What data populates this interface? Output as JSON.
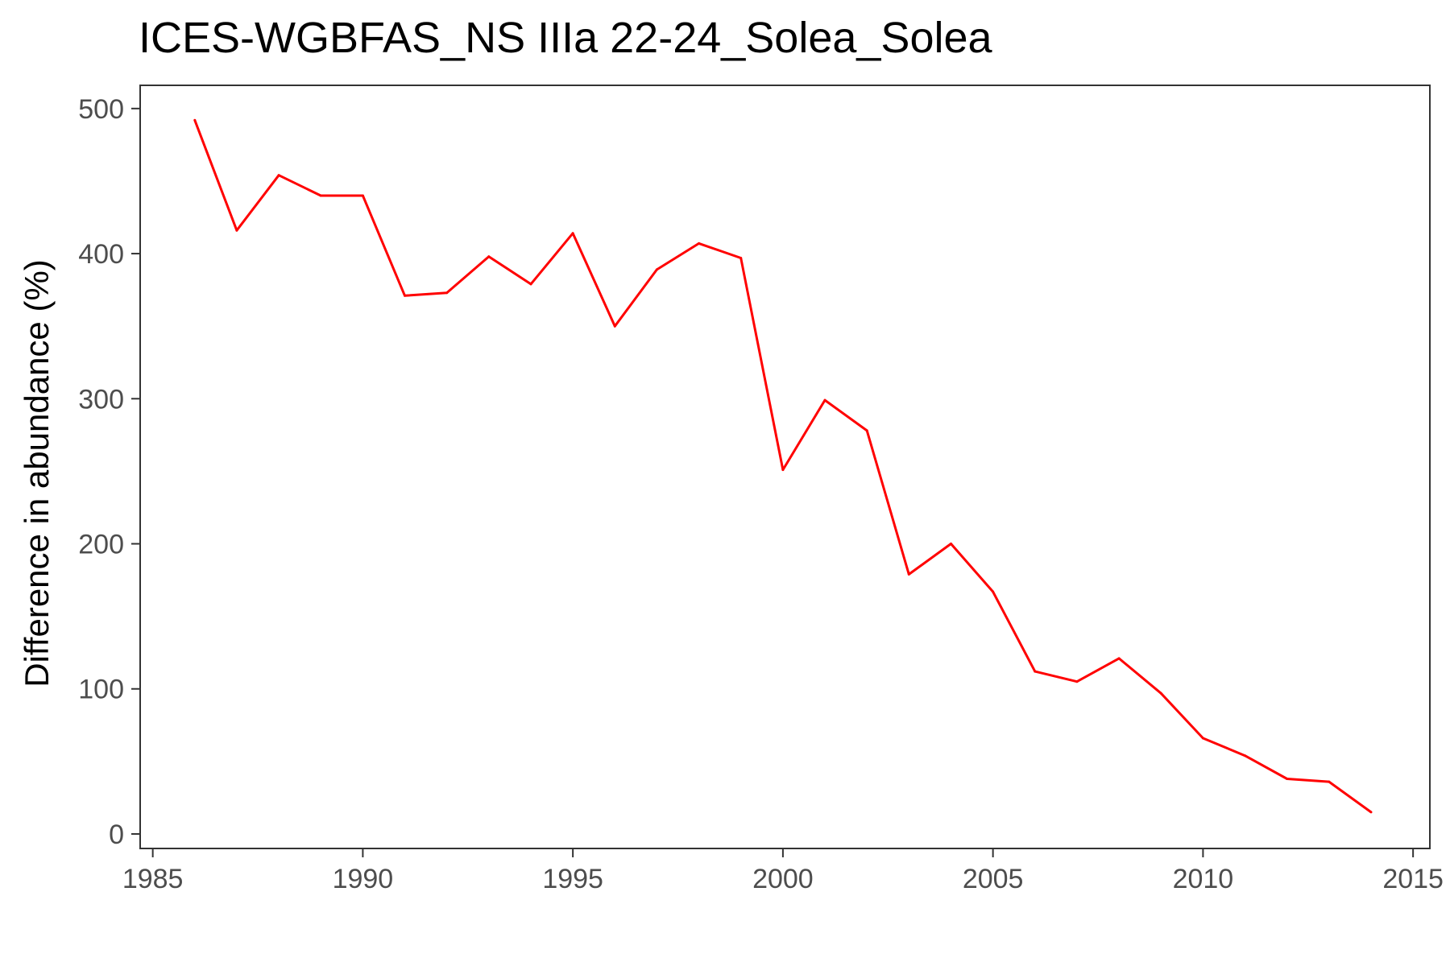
{
  "chart_data": {
    "type": "line",
    "title": "ICES-WGBFAS_NS IIIa 22-24_Solea_Solea",
    "xlabel": "",
    "ylabel": "Difference in abundance (%)",
    "xlim": [
      1984.7,
      2015.4
    ],
    "ylim": [
      -10,
      516
    ],
    "x_ticks": [
      1985,
      1990,
      1995,
      2000,
      2005,
      2010,
      2015
    ],
    "y_ticks": [
      0,
      100,
      200,
      300,
      400,
      500
    ],
    "grid": false,
    "legend": "none",
    "series": [
      {
        "color": "#ff0000",
        "x": [
          1986,
          1987,
          1988,
          1989,
          1990,
          1991,
          1992,
          1993,
          1994,
          1995,
          1996,
          1997,
          1998,
          1999,
          2000,
          2001,
          2002,
          2003,
          2004,
          2005,
          2006,
          2007,
          2008,
          2009,
          2010,
          2011,
          2012,
          2013,
          2014
        ],
        "values": [
          492,
          416,
          454,
          440,
          440,
          371,
          373,
          398,
          379,
          414,
          350,
          389,
          407,
          397,
          251,
          299,
          278,
          179,
          200,
          167,
          112,
          105,
          121,
          97,
          66,
          54,
          38,
          36,
          15
        ]
      }
    ]
  }
}
